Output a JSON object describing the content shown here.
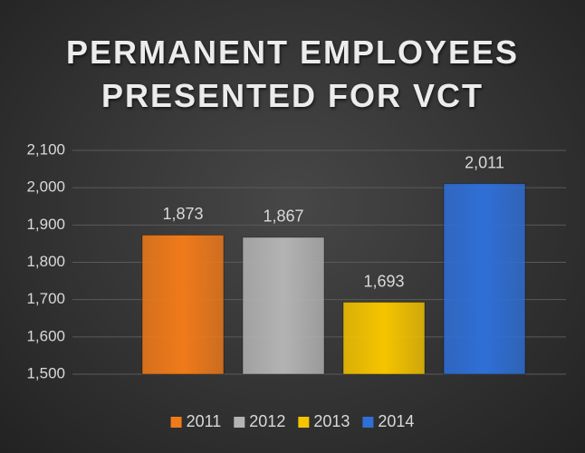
{
  "chart_data": {
    "type": "bar",
    "title": "PERMANENT EMPLOYEES PRESENTED FOR VCT",
    "categories": [
      null
    ],
    "series": [
      {
        "name": "2011",
        "color": "#f07a1a",
        "values": [
          1873
        ],
        "value_labels": [
          "1,873"
        ]
      },
      {
        "name": "2012",
        "color": "#b3b3b3",
        "values": [
          1867
        ],
        "value_labels": [
          "1,867"
        ]
      },
      {
        "name": "2013",
        "color": "#f5c400",
        "values": [
          1693
        ],
        "value_labels": [
          "1,693"
        ]
      },
      {
        "name": "2014",
        "color": "#2f6fd6",
        "values": [
          2011
        ],
        "value_labels": [
          "2,011"
        ]
      }
    ],
    "ylim": [
      1500,
      2100
    ],
    "yticks": [
      {
        "value": 1500,
        "label": "1,500"
      },
      {
        "value": 1600,
        "label": "1,600"
      },
      {
        "value": 1700,
        "label": "1,700"
      },
      {
        "value": 1800,
        "label": "1,800"
      },
      {
        "value": 1900,
        "label": "1,900"
      },
      {
        "value": 2000,
        "label": "2,000"
      },
      {
        "value": 2100,
        "label": "2,100"
      }
    ],
    "grid": true,
    "legend": "bottom"
  }
}
